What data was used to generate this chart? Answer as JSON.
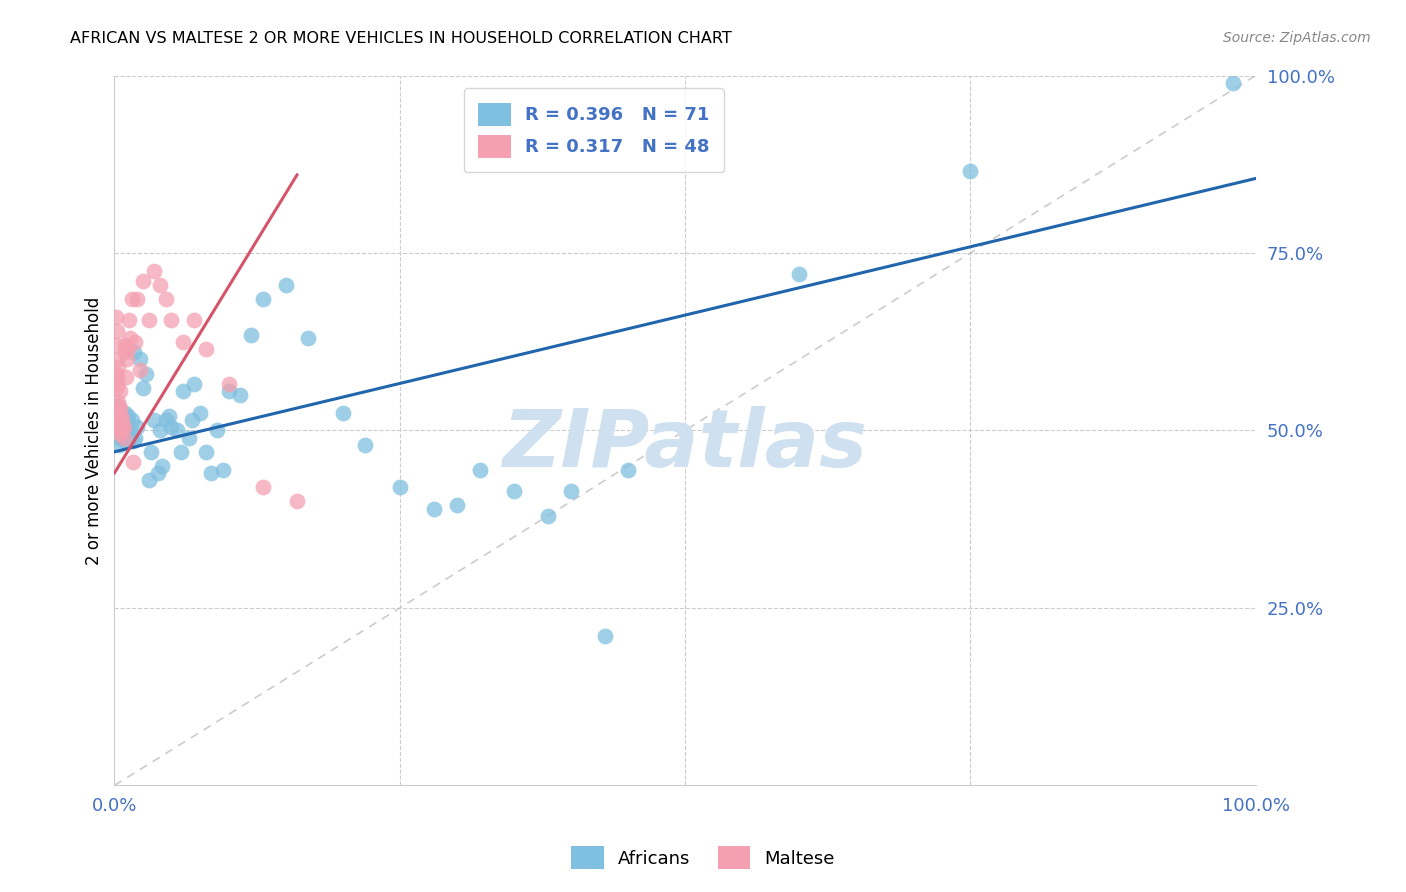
{
  "title": "AFRICAN VS MALTESE 2 OR MORE VEHICLES IN HOUSEHOLD CORRELATION CHART",
  "source": "Source: ZipAtlas.com",
  "ylabel": "2 or more Vehicles in Household",
  "xlim": [
    0,
    1.0
  ],
  "ylim": [
    0,
    1.0
  ],
  "legend_R_african": "0.396",
  "legend_N_african": "71",
  "legend_R_maltese": "0.317",
  "legend_N_maltese": "48",
  "blue_color": "#7fbfdf",
  "pink_color": "#f4a0b0",
  "blue_line_color": "#2166ac",
  "pink_line_color": "#d6546a",
  "watermark": "ZIPatlas",
  "watermark_color": "#cfe0f0",
  "grid_color": "#cccccc",
  "tick_color": "#4472c4",
  "africans_x": [
    0.001,
    0.002,
    0.002,
    0.003,
    0.003,
    0.004,
    0.004,
    0.005,
    0.005,
    0.006,
    0.006,
    0.007,
    0.007,
    0.008,
    0.008,
    0.009,
    0.009,
    0.01,
    0.01,
    0.011,
    0.012,
    0.013,
    0.014,
    0.015,
    0.016,
    0.017,
    0.018,
    0.02,
    0.022,
    0.025,
    0.028,
    0.03,
    0.032,
    0.035,
    0.038,
    0.04,
    0.042,
    0.045,
    0.048,
    0.05,
    0.055,
    0.058,
    0.06,
    0.065,
    0.068,
    0.07,
    0.075,
    0.08,
    0.085,
    0.09,
    0.095,
    0.1,
    0.11,
    0.12,
    0.13,
    0.15,
    0.17,
    0.2,
    0.22,
    0.25,
    0.28,
    0.3,
    0.32,
    0.35,
    0.38,
    0.4,
    0.43,
    0.45,
    0.6,
    0.75,
    0.98
  ],
  "africans_y": [
    0.52,
    0.51,
    0.535,
    0.505,
    0.495,
    0.51,
    0.48,
    0.49,
    0.515,
    0.5,
    0.525,
    0.5,
    0.51,
    0.49,
    0.505,
    0.525,
    0.485,
    0.49,
    0.505,
    0.515,
    0.52,
    0.49,
    0.5,
    0.515,
    0.485,
    0.61,
    0.49,
    0.505,
    0.6,
    0.56,
    0.58,
    0.43,
    0.47,
    0.515,
    0.44,
    0.5,
    0.45,
    0.515,
    0.52,
    0.505,
    0.5,
    0.47,
    0.555,
    0.49,
    0.515,
    0.565,
    0.525,
    0.47,
    0.44,
    0.5,
    0.445,
    0.555,
    0.55,
    0.635,
    0.685,
    0.705,
    0.63,
    0.525,
    0.48,
    0.42,
    0.39,
    0.395,
    0.445,
    0.415,
    0.38,
    0.415,
    0.21,
    0.445,
    0.72,
    0.865,
    0.99
  ],
  "maltese_x": [
    0.001,
    0.001,
    0.001,
    0.001,
    0.002,
    0.002,
    0.002,
    0.002,
    0.003,
    0.003,
    0.003,
    0.003,
    0.004,
    0.004,
    0.004,
    0.005,
    0.005,
    0.005,
    0.006,
    0.006,
    0.007,
    0.007,
    0.008,
    0.008,
    0.009,
    0.009,
    0.01,
    0.011,
    0.012,
    0.013,
    0.014,
    0.015,
    0.016,
    0.018,
    0.02,
    0.022,
    0.025,
    0.03,
    0.035,
    0.04,
    0.045,
    0.05,
    0.06,
    0.07,
    0.08,
    0.1,
    0.13,
    0.16
  ],
  "maltese_y": [
    0.58,
    0.62,
    0.66,
    0.56,
    0.6,
    0.64,
    0.52,
    0.575,
    0.54,
    0.59,
    0.51,
    0.565,
    0.5,
    0.515,
    0.535,
    0.53,
    0.555,
    0.495,
    0.5,
    0.52,
    0.505,
    0.515,
    0.49,
    0.505,
    0.62,
    0.61,
    0.575,
    0.6,
    0.615,
    0.655,
    0.63,
    0.685,
    0.455,
    0.625,
    0.685,
    0.585,
    0.71,
    0.655,
    0.725,
    0.705,
    0.685,
    0.655,
    0.625,
    0.655,
    0.615,
    0.565,
    0.42,
    0.4
  ],
  "blue_trend_x": [
    0.0,
    1.0
  ],
  "blue_trend_y": [
    0.47,
    0.855
  ],
  "pink_trend_x": [
    0.0,
    0.16
  ],
  "pink_trend_y": [
    0.44,
    0.86
  ],
  "ref_line_x": [
    0.0,
    1.0
  ],
  "ref_line_y": [
    0.0,
    1.0
  ]
}
